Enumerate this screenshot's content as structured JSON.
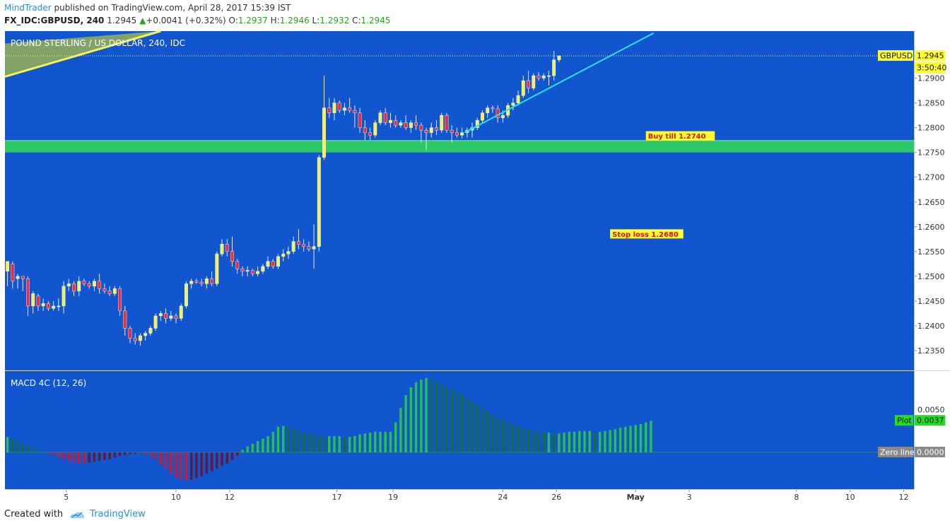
{
  "header": {
    "author": "MindTrader",
    "published_text": "published on TradingView.com, April 28, 2017 15:39 IST",
    "symbol": "FX_IDC:GBPUSD, 240",
    "last": "1.2945",
    "change": "+0.0041 (+0.32%)",
    "o_label": "O:",
    "o_value": "1.2937",
    "h_label": "H:",
    "h_value": "1.2946",
    "l_label": "L:",
    "l_value": "1.2932",
    "c_label": "C:",
    "c_value": "1.2945"
  },
  "footer": {
    "created_with": "Created with",
    "brand": "TradingView"
  },
  "colors": {
    "background": "#1256cf",
    "bull_candle": "#f4f25c",
    "bear_candle": "#e8303c",
    "wick": "#e8e8e8",
    "zone": "#2ec86a",
    "trendline": "#28e2f0",
    "wedge_fill": "#8da860",
    "wedge_line": "#f4f25c",
    "hist_green": "#27c04a",
    "hist_dark_green": "#146c4a",
    "hist_red": "#c0203c",
    "hist_dark_red": "#5e1a40",
    "label_yellow": "#ffff33",
    "label_green": "#22dd22",
    "label_gray": "#8a8a8a"
  },
  "chart_data": {
    "type": "candlestick",
    "symbol_title": "POUND STERLING / US DOLLAR, 240, IDC",
    "ylim": [
      1.231,
      1.2995
    ],
    "y_ticks": [
      "1.2350",
      "1.2400",
      "1.2450",
      "1.2500",
      "1.2550",
      "1.2600",
      "1.2650",
      "1.2700",
      "1.2750",
      "1.2800",
      "1.2850",
      "1.2900"
    ],
    "x_tick_labels": [
      "5",
      "10",
      "12",
      "17",
      "19",
      "24",
      "26",
      "May",
      "3",
      "8",
      "10",
      "12"
    ],
    "x_tick_bars": [
      11.5,
      33,
      43.5,
      64.5,
      75.5,
      97,
      107.5,
      123,
      133.5,
      154.5,
      165,
      175.5
    ],
    "bar_count_visible": 178,
    "last_price_label": "GBPUSD",
    "last_price": "1.2945",
    "countdown": "3:50:40",
    "buy_zone": [
      1.275,
      1.2774
    ],
    "buy_text": "Buy till 1.2740",
    "buy_text_price": 1.278,
    "buy_text_bar": 125,
    "stop_text": "Stop loss 1.2680",
    "stop_text_price": 1.2582,
    "stop_text_bar": 118,
    "trendline": [
      {
        "bar": 89.5,
        "price": 1.279
      },
      {
        "bar": 126.5,
        "price": 1.2991
      }
    ],
    "wedge": {
      "upper": [
        {
          "bar": 0,
          "price": 1.297
        },
        {
          "bar": 30,
          "price": 1.2995
        }
      ],
      "lower": [
        {
          "bar": 0,
          "price": 1.2903
        },
        {
          "bar": 30,
          "price": 1.2995
        }
      ]
    },
    "candles": [
      {
        "o": 1.251,
        "h": 1.253,
        "l": 1.248,
        "c": 1.253
      },
      {
        "o": 1.2525,
        "h": 1.253,
        "l": 1.2475,
        "c": 1.249
      },
      {
        "o": 1.2495,
        "h": 1.2505,
        "l": 1.2475,
        "c": 1.25
      },
      {
        "o": 1.25,
        "h": 1.25,
        "l": 1.247,
        "c": 1.2495
      },
      {
        "o": 1.2495,
        "h": 1.25,
        "l": 1.242,
        "c": 1.244
      },
      {
        "o": 1.244,
        "h": 1.247,
        "l": 1.2425,
        "c": 1.2465
      },
      {
        "o": 1.246,
        "h": 1.2465,
        "l": 1.243,
        "c": 1.244
      },
      {
        "o": 1.244,
        "h": 1.2455,
        "l": 1.243,
        "c": 1.2445
      },
      {
        "o": 1.2445,
        "h": 1.245,
        "l": 1.243,
        "c": 1.2435
      },
      {
        "o": 1.2435,
        "h": 1.245,
        "l": 1.243,
        "c": 1.244
      },
      {
        "o": 1.244,
        "h": 1.2455,
        "l": 1.243,
        "c": 1.244
      },
      {
        "o": 1.244,
        "h": 1.249,
        "l": 1.2425,
        "c": 1.248
      },
      {
        "o": 1.248,
        "h": 1.2495,
        "l": 1.247,
        "c": 1.2485
      },
      {
        "o": 1.2485,
        "h": 1.249,
        "l": 1.246,
        "c": 1.247
      },
      {
        "o": 1.247,
        "h": 1.25,
        "l": 1.246,
        "c": 1.249
      },
      {
        "o": 1.249,
        "h": 1.2495,
        "l": 1.248,
        "c": 1.2485
      },
      {
        "o": 1.2485,
        "h": 1.249,
        "l": 1.2475,
        "c": 1.248
      },
      {
        "o": 1.248,
        "h": 1.2495,
        "l": 1.247,
        "c": 1.249
      },
      {
        "o": 1.249,
        "h": 1.2505,
        "l": 1.2465,
        "c": 1.2475
      },
      {
        "o": 1.2475,
        "h": 1.2485,
        "l": 1.2465,
        "c": 1.247
      },
      {
        "o": 1.247,
        "h": 1.248,
        "l": 1.246,
        "c": 1.2465
      },
      {
        "o": 1.2465,
        "h": 1.248,
        "l": 1.246,
        "c": 1.2475
      },
      {
        "o": 1.2475,
        "h": 1.248,
        "l": 1.242,
        "c": 1.243
      },
      {
        "o": 1.243,
        "h": 1.244,
        "l": 1.238,
        "c": 1.2395
      },
      {
        "o": 1.2395,
        "h": 1.24,
        "l": 1.2365,
        "c": 1.2375
      },
      {
        "o": 1.2375,
        "h": 1.2385,
        "l": 1.2362,
        "c": 1.237
      },
      {
        "o": 1.237,
        "h": 1.2385,
        "l": 1.236,
        "c": 1.238
      },
      {
        "o": 1.238,
        "h": 1.239,
        "l": 1.237,
        "c": 1.2385
      },
      {
        "o": 1.2385,
        "h": 1.24,
        "l": 1.238,
        "c": 1.2395
      },
      {
        "o": 1.2395,
        "h": 1.2425,
        "l": 1.239,
        "c": 1.242
      },
      {
        "o": 1.242,
        "h": 1.243,
        "l": 1.241,
        "c": 1.2425
      },
      {
        "o": 1.2425,
        "h": 1.2435,
        "l": 1.2405,
        "c": 1.2415
      },
      {
        "o": 1.2415,
        "h": 1.243,
        "l": 1.241,
        "c": 1.242
      },
      {
        "o": 1.242,
        "h": 1.2425,
        "l": 1.2405,
        "c": 1.2415
      },
      {
        "o": 1.2415,
        "h": 1.2445,
        "l": 1.241,
        "c": 1.244
      },
      {
        "o": 1.244,
        "h": 1.249,
        "l": 1.2435,
        "c": 1.2485
      },
      {
        "o": 1.2485,
        "h": 1.2495,
        "l": 1.2475,
        "c": 1.249
      },
      {
        "o": 1.249,
        "h": 1.2495,
        "l": 1.2485,
        "c": 1.2488
      },
      {
        "o": 1.2488,
        "h": 1.2495,
        "l": 1.248,
        "c": 1.2485
      },
      {
        "o": 1.2485,
        "h": 1.25,
        "l": 1.2475,
        "c": 1.2495
      },
      {
        "o": 1.2495,
        "h": 1.251,
        "l": 1.248,
        "c": 1.2485
      },
      {
        "o": 1.2485,
        "h": 1.255,
        "l": 1.248,
        "c": 1.2545
      },
      {
        "o": 1.2545,
        "h": 1.2575,
        "l": 1.254,
        "c": 1.2565
      },
      {
        "o": 1.2565,
        "h": 1.2575,
        "l": 1.254,
        "c": 1.255
      },
      {
        "o": 1.255,
        "h": 1.258,
        "l": 1.252,
        "c": 1.253
      },
      {
        "o": 1.253,
        "h": 1.2535,
        "l": 1.2505,
        "c": 1.2515
      },
      {
        "o": 1.2515,
        "h": 1.252,
        "l": 1.25,
        "c": 1.251
      },
      {
        "o": 1.251,
        "h": 1.252,
        "l": 1.25,
        "c": 1.2512
      },
      {
        "o": 1.2512,
        "h": 1.2515,
        "l": 1.25,
        "c": 1.2505
      },
      {
        "o": 1.2505,
        "h": 1.252,
        "l": 1.25,
        "c": 1.251
      },
      {
        "o": 1.251,
        "h": 1.2525,
        "l": 1.2505,
        "c": 1.252
      },
      {
        "o": 1.252,
        "h": 1.254,
        "l": 1.2515,
        "c": 1.253
      },
      {
        "o": 1.253,
        "h": 1.2535,
        "l": 1.2515,
        "c": 1.252
      },
      {
        "o": 1.252,
        "h": 1.2545,
        "l": 1.2515,
        "c": 1.254
      },
      {
        "o": 1.254,
        "h": 1.2555,
        "l": 1.253,
        "c": 1.2545
      },
      {
        "o": 1.2545,
        "h": 1.256,
        "l": 1.2535,
        "c": 1.255
      },
      {
        "o": 1.255,
        "h": 1.258,
        "l": 1.2545,
        "c": 1.257
      },
      {
        "o": 1.257,
        "h": 1.2595,
        "l": 1.2555,
        "c": 1.2565
      },
      {
        "o": 1.2565,
        "h": 1.2575,
        "l": 1.255,
        "c": 1.256
      },
      {
        "o": 1.256,
        "h": 1.257,
        "l": 1.255,
        "c": 1.2555
      },
      {
        "o": 1.2555,
        "h": 1.2605,
        "l": 1.2515,
        "c": 1.256
      },
      {
        "o": 1.256,
        "h": 1.2745,
        "l": 1.255,
        "c": 1.274
      },
      {
        "o": 1.274,
        "h": 1.2905,
        "l": 1.2735,
        "c": 1.284
      },
      {
        "o": 1.284,
        "h": 1.286,
        "l": 1.282,
        "c": 1.283
      },
      {
        "o": 1.283,
        "h": 1.286,
        "l": 1.2815,
        "c": 1.285
      },
      {
        "o": 1.285,
        "h": 1.2855,
        "l": 1.283,
        "c": 1.2835
      },
      {
        "o": 1.2835,
        "h": 1.285,
        "l": 1.2825,
        "c": 1.284
      },
      {
        "o": 1.284,
        "h": 1.286,
        "l": 1.283,
        "c": 1.2835
      },
      {
        "o": 1.2835,
        "h": 1.2845,
        "l": 1.28,
        "c": 1.283
      },
      {
        "o": 1.283,
        "h": 1.284,
        "l": 1.279,
        "c": 1.28
      },
      {
        "o": 1.28,
        "h": 1.2815,
        "l": 1.2775,
        "c": 1.279
      },
      {
        "o": 1.279,
        "h": 1.28,
        "l": 1.2775,
        "c": 1.2785
      },
      {
        "o": 1.2785,
        "h": 1.2815,
        "l": 1.278,
        "c": 1.281
      },
      {
        "o": 1.281,
        "h": 1.2835,
        "l": 1.2805,
        "c": 1.283
      },
      {
        "o": 1.283,
        "h": 1.284,
        "l": 1.2805,
        "c": 1.281
      },
      {
        "o": 1.281,
        "h": 1.283,
        "l": 1.28,
        "c": 1.2815
      },
      {
        "o": 1.2815,
        "h": 1.2825,
        "l": 1.28,
        "c": 1.2805
      },
      {
        "o": 1.2805,
        "h": 1.2815,
        "l": 1.28,
        "c": 1.281
      },
      {
        "o": 1.281,
        "h": 1.2825,
        "l": 1.2795,
        "c": 1.28
      },
      {
        "o": 1.28,
        "h": 1.2815,
        "l": 1.279,
        "c": 1.281
      },
      {
        "o": 1.281,
        "h": 1.2825,
        "l": 1.2795,
        "c": 1.2805
      },
      {
        "o": 1.2805,
        "h": 1.281,
        "l": 1.277,
        "c": 1.2795
      },
      {
        "o": 1.2795,
        "h": 1.28,
        "l": 1.2755,
        "c": 1.279
      },
      {
        "o": 1.279,
        "h": 1.281,
        "l": 1.278,
        "c": 1.28
      },
      {
        "o": 1.28,
        "h": 1.2815,
        "l": 1.2785,
        "c": 1.2795
      },
      {
        "o": 1.2795,
        "h": 1.283,
        "l": 1.279,
        "c": 1.2825
      },
      {
        "o": 1.2825,
        "h": 1.283,
        "l": 1.279,
        "c": 1.2795
      },
      {
        "o": 1.2795,
        "h": 1.2805,
        "l": 1.277,
        "c": 1.279
      },
      {
        "o": 1.279,
        "h": 1.28,
        "l": 1.278,
        "c": 1.2785
      },
      {
        "o": 1.2785,
        "h": 1.28,
        "l": 1.2778,
        "c": 1.279
      },
      {
        "o": 1.279,
        "h": 1.28,
        "l": 1.278,
        "c": 1.2795
      },
      {
        "o": 1.2795,
        "h": 1.281,
        "l": 1.278,
        "c": 1.28
      },
      {
        "o": 1.28,
        "h": 1.282,
        "l": 1.2795,
        "c": 1.2815
      },
      {
        "o": 1.2815,
        "h": 1.2835,
        "l": 1.281,
        "c": 1.283
      },
      {
        "o": 1.283,
        "h": 1.2845,
        "l": 1.282,
        "c": 1.284
      },
      {
        "o": 1.284,
        "h": 1.2845,
        "l": 1.283,
        "c": 1.2838
      },
      {
        "o": 1.2838,
        "h": 1.2845,
        "l": 1.281,
        "c": 1.282
      },
      {
        "o": 1.282,
        "h": 1.2835,
        "l": 1.281,
        "c": 1.2825
      },
      {
        "o": 1.2825,
        "h": 1.285,
        "l": 1.282,
        "c": 1.2845
      },
      {
        "o": 1.2845,
        "h": 1.286,
        "l": 1.2835,
        "c": 1.285
      },
      {
        "o": 1.285,
        "h": 1.2875,
        "l": 1.2845,
        "c": 1.2865
      },
      {
        "o": 1.2865,
        "h": 1.2905,
        "l": 1.286,
        "c": 1.2895
      },
      {
        "o": 1.2895,
        "h": 1.2915,
        "l": 1.287,
        "c": 1.288
      },
      {
        "o": 1.288,
        "h": 1.291,
        "l": 1.2875,
        "c": 1.2905
      },
      {
        "o": 1.2905,
        "h": 1.2912,
        "l": 1.2895,
        "c": 1.29
      },
      {
        "o": 1.29,
        "h": 1.291,
        "l": 1.2895,
        "c": 1.2905
      },
      {
        "o": 1.2905,
        "h": 1.2915,
        "l": 1.2885,
        "c": 1.2905
      },
      {
        "o": 1.2905,
        "h": 1.2955,
        "l": 1.2895,
        "c": 1.2937
      },
      {
        "o": 1.2937,
        "h": 1.2946,
        "l": 1.2932,
        "c": 1.2945
      }
    ],
    "macd": {
      "title": "MACD 4C (12, 26)",
      "ylim": [
        -0.0043,
        0.0095
      ],
      "y_ticks": [
        "0.0050"
      ],
      "plot_label": "Plot",
      "plot_value": "0.0037",
      "zero_label": "Zero line",
      "zero_value": "0.0000",
      "values": [
        0.0018,
        0.0016,
        0.0013,
        0.0011,
        0.0008,
        0.0005,
        0.0003,
        0.0001,
        -0.0001,
        -0.0003,
        -0.0006,
        -0.0008,
        -0.001,
        -0.0012,
        -0.0013,
        -0.0013,
        -0.0012,
        -0.0011,
        -0.001,
        -0.0009,
        -0.0008,
        -0.0006,
        -0.0004,
        -0.0003,
        -0.0002,
        -0.0001,
        -0.0001,
        -0.0002,
        -0.0004,
        -0.0008,
        -0.0014,
        -0.002,
        -0.0025,
        -0.0029,
        -0.0032,
        -0.0033,
        -0.0032,
        -0.003,
        -0.0028,
        -0.0025,
        -0.0022,
        -0.0019,
        -0.0016,
        -0.0013,
        -0.0009,
        -0.0004,
        0.0003,
        0.0007,
        0.001,
        0.0013,
        0.0016,
        0.0019,
        0.0024,
        0.003,
        0.0031,
        0.003,
        0.0028,
        0.0026,
        0.0024,
        0.0022,
        0.0021,
        0.002,
        0.0019,
        0.0019,
        0.0019,
        0.0019,
        0.0018,
        0.0018,
        0.0019,
        0.0021,
        0.0022,
        0.0023,
        0.0024,
        0.0024,
        0.0024,
        0.0024,
        0.0035,
        0.0052,
        0.0067,
        0.0076,
        0.0082,
        0.0085,
        0.0087,
        0.0086,
        0.0083,
        0.008,
        0.0077,
        0.0074,
        0.0071,
        0.0068,
        0.0064,
        0.006,
        0.0056,
        0.0052,
        0.0048,
        0.0044,
        0.0041,
        0.0038,
        0.0035,
        0.0033,
        0.0031,
        0.0029,
        0.0027,
        0.0025,
        0.0024,
        0.0023,
        0.0023,
        0.0022,
        0.0022,
        0.0023,
        0.0024,
        0.0024,
        0.0025,
        0.0025,
        0.0025,
        0.0024,
        0.0024,
        0.0025,
        0.0026,
        0.0027,
        0.0029,
        0.003,
        0.0031,
        0.0032,
        0.0033,
        0.0035,
        0.0037
      ]
    }
  }
}
